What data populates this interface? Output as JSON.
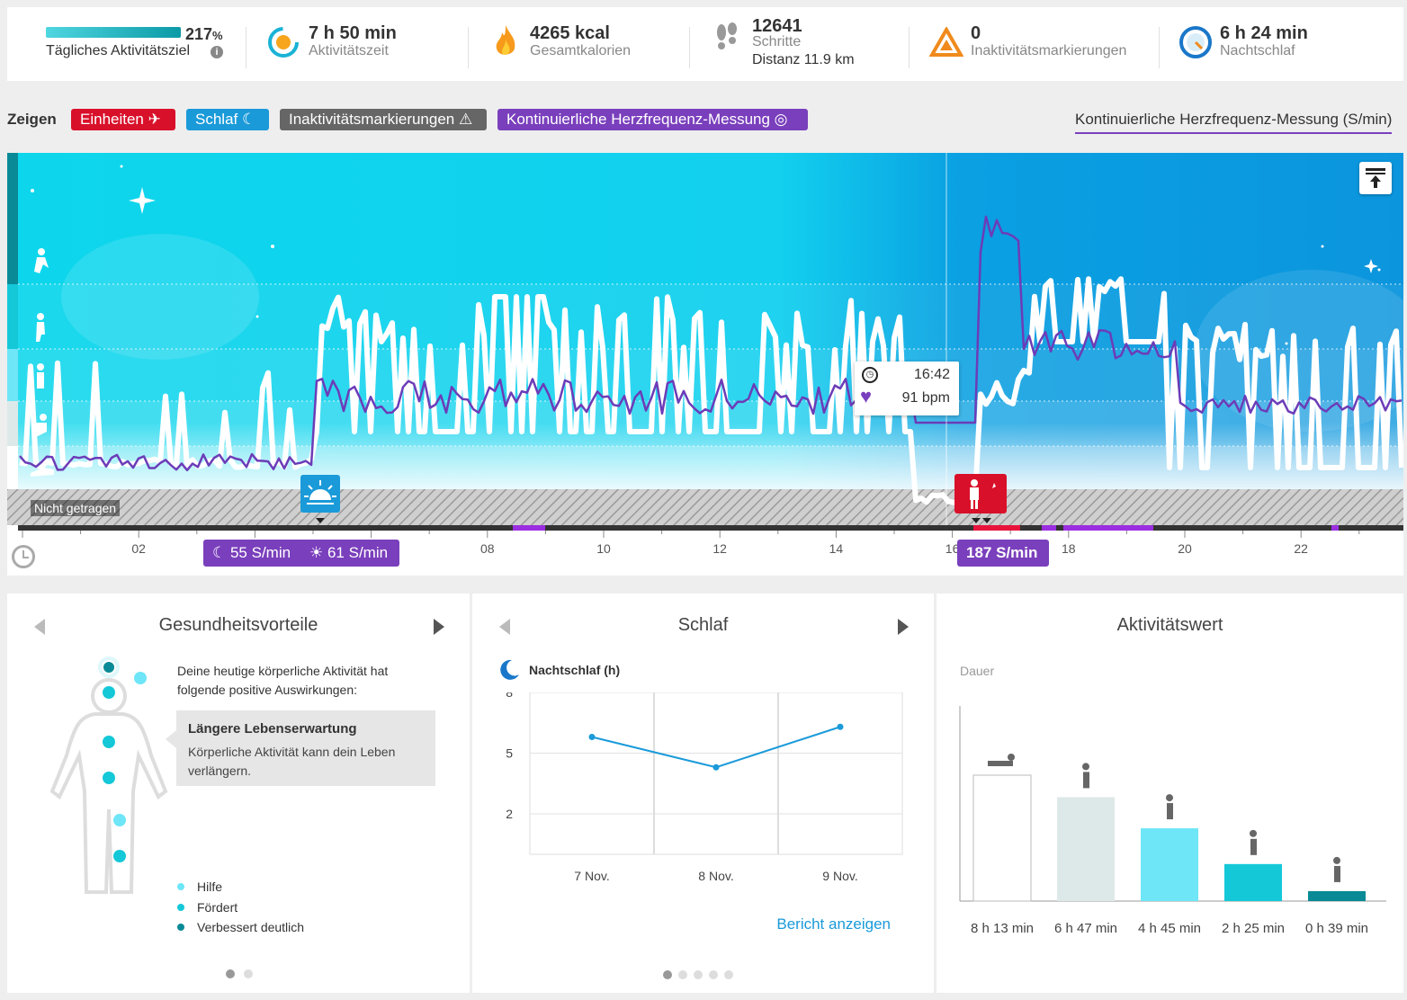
{
  "stats": {
    "goal": {
      "percent": "217",
      "percent_unit": "%",
      "label": "Tägliches Aktivitätsziel",
      "fill": 1.0
    },
    "activity_time": {
      "value": "7 h 50 min",
      "label": "Aktivitätszeit"
    },
    "calories": {
      "value": "4265 kcal",
      "label": "Gesamtkalorien"
    },
    "steps": {
      "value": "12641",
      "label": "Schritte",
      "distance": "Distanz 11.9 km"
    },
    "inactivity": {
      "value": "0",
      "label": "Inaktivitätsmarkierungen"
    },
    "night_sleep": {
      "value": "6 h 24 min",
      "label": "Nachtschlaf"
    }
  },
  "filters": {
    "show_label": "Zeigen",
    "chips": [
      {
        "label": "Einheiten",
        "color": "#d9102a"
      },
      {
        "label": "Schlaf",
        "color": "#1a9ad9"
      },
      {
        "label": "Inaktivitätsmarkierungen",
        "color": "#666666"
      },
      {
        "label": "Kontinuierliche Herzfrequenz-Messung",
        "color": "#7a3fbc"
      }
    ],
    "right_label": "Kontinuierliche Herzfrequenz-Messung (S/min)"
  },
  "chart": {
    "not_worn_label": "Nicht getragen",
    "hours": [
      "02",
      "08",
      "10",
      "12",
      "14",
      "16",
      "18",
      "20",
      "22"
    ],
    "tooltip": {
      "time": "16:42",
      "bpm": "91 bpm"
    },
    "hr_badges": {
      "sleep_low": "55 S/min",
      "wake": "61 S/min",
      "max": "187 S/min"
    }
  },
  "health": {
    "title": "Gesundheitsvorteile",
    "intro": "Deine heutige körperliche Aktivität hat folgende positive Auswirkungen:",
    "box_title": "Längere Lebenserwartung",
    "box_text": "Körperliche Aktivität kann dein Leben verlängern.",
    "legend": [
      "Hilfe",
      "Fördert",
      "Verbessert deutlich"
    ],
    "legend_colors": [
      "#6ee6f7",
      "#14c8d8",
      "#0a8a96"
    ]
  },
  "sleep_panel": {
    "title": "Schlaf",
    "chart_title": "Nachtschlaf (h)",
    "link": "Bericht anzeigen",
    "chart_data": {
      "type": "line",
      "categories": [
        "7 Nov.",
        "8 Nov.",
        "9 Nov."
      ],
      "values": [
        5.8,
        4.3,
        6.3
      ],
      "yticks": [
        "8",
        "5",
        "2"
      ],
      "ylim": [
        0,
        8
      ]
    }
  },
  "activity_panel": {
    "title": "Aktivitätswert",
    "ylabel": "Dauer",
    "chart_data": {
      "type": "bar",
      "categories": [
        "Liegen",
        "Sitzen",
        "Stehen",
        "Gehen",
        "Laufen"
      ],
      "labels": [
        "8 h 13 min",
        "6 h 47 min",
        "4 h 45 min",
        "2 h 25 min",
        "0 h 39 min"
      ],
      "values": [
        493,
        407,
        285,
        145,
        39
      ],
      "colors": [
        "#ffffff",
        "#dde9e9",
        "#6ee6f7",
        "#14c8d8",
        "#0a8a96"
      ]
    }
  }
}
